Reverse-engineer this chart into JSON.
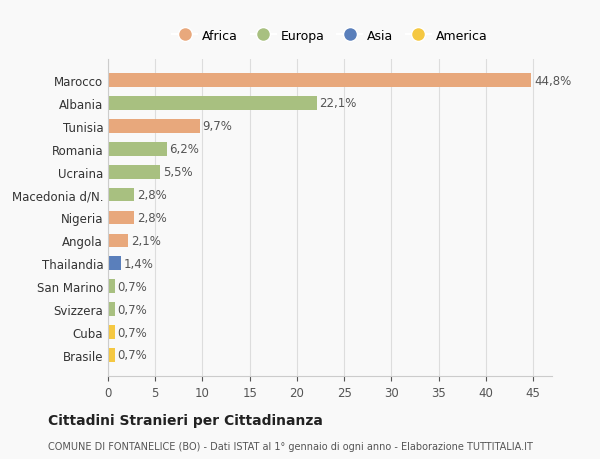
{
  "categories": [
    "Brasile",
    "Cuba",
    "Svizzera",
    "San Marino",
    "Thailandia",
    "Angola",
    "Nigeria",
    "Macedonia d/N.",
    "Ucraina",
    "Romania",
    "Tunisia",
    "Albania",
    "Marocco"
  ],
  "values": [
    0.7,
    0.7,
    0.7,
    0.7,
    1.4,
    2.1,
    2.8,
    2.8,
    5.5,
    6.2,
    9.7,
    22.1,
    44.8
  ],
  "colors": [
    "#F5C842",
    "#F5C842",
    "#A8C080",
    "#A8C080",
    "#5A7FBB",
    "#E8A87C",
    "#E8A87C",
    "#A8C080",
    "#A8C080",
    "#A8C080",
    "#E8A87C",
    "#A8C080",
    "#E8A87C"
  ],
  "labels": [
    "0,7%",
    "0,7%",
    "0,7%",
    "0,7%",
    "1,4%",
    "2,1%",
    "2,8%",
    "2,8%",
    "5,5%",
    "6,2%",
    "9,7%",
    "22,1%",
    "44,8%"
  ],
  "legend": [
    {
      "label": "Africa",
      "color": "#E8A87C"
    },
    {
      "label": "Europa",
      "color": "#A8C080"
    },
    {
      "label": "Asia",
      "color": "#5A7FBB"
    },
    {
      "label": "America",
      "color": "#F5C842"
    }
  ],
  "title": "Cittadini Stranieri per Cittadinanza",
  "subtitle": "COMUNE DI FONTANELICE (BO) - Dati ISTAT al 1° gennaio di ogni anno - Elaborazione TUTTITALIA.IT",
  "xlim": [
    0,
    47
  ],
  "xticks": [
    0,
    5,
    10,
    15,
    20,
    25,
    30,
    35,
    40,
    45
  ],
  "background_color": "#f9f9f9",
  "grid_color": "#dddddd"
}
